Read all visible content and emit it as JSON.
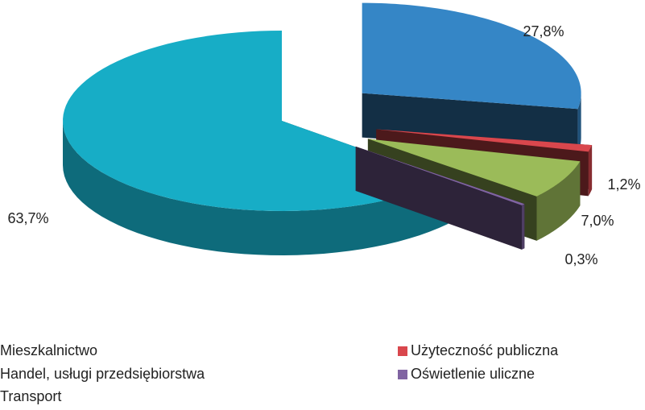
{
  "chart_data": {
    "type": "pie",
    "categories": [
      "Handel, usługi przedsiębiorstwa",
      "Użyteczność publiczna",
      "Transport",
      "Oświetlenie uliczne",
      "Mieszkalnictwo"
    ],
    "values": [
      27.8,
      1.2,
      7.0,
      0.3,
      63.7
    ],
    "value_labels": [
      "27,8%",
      "1,2%",
      "7,0%",
      "0,3%",
      "63,7%"
    ],
    "colors": [
      "#3586c6",
      "#d9474d",
      "#9bbb59",
      "#8064a2",
      "#17adc6"
    ],
    "legend": "bottom"
  }
}
